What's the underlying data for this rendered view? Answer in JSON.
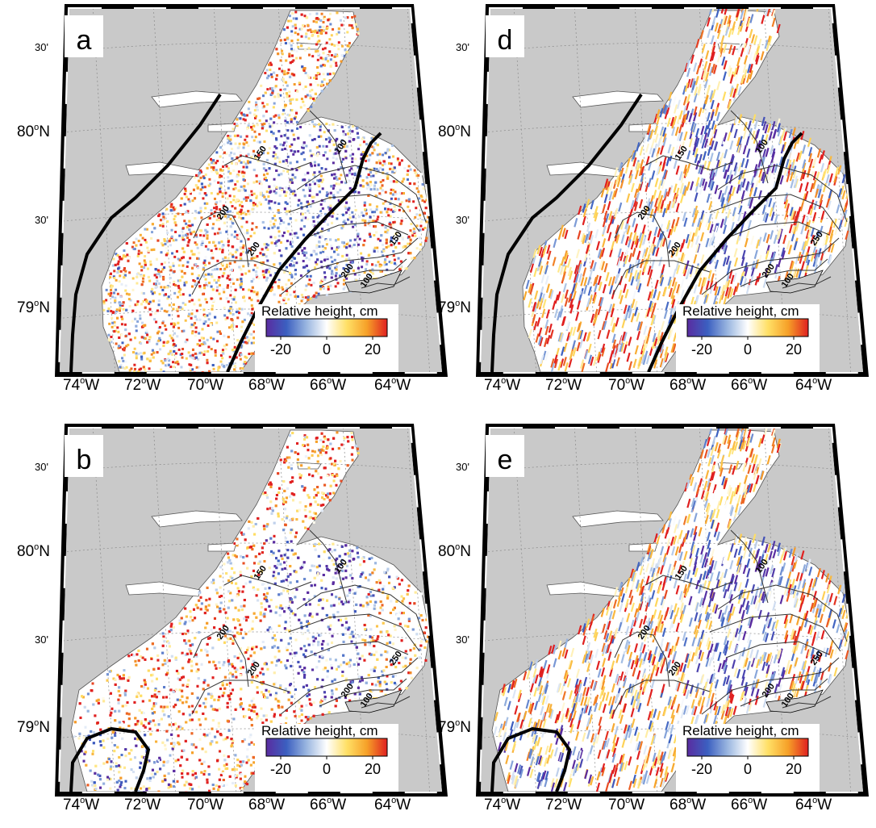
{
  "figure": {
    "colorbar": {
      "title": "Relative height, cm",
      "tick_labels": [
        "-20",
        "0",
        "20"
      ],
      "colors": [
        "#5a2ca0",
        "#3b5fc0",
        "#9ab6e0",
        "#ffffff",
        "#ffe066",
        "#f6a028",
        "#e02020"
      ]
    },
    "map_colors": {
      "land": "#c9c9c9",
      "water": "#ffffff",
      "frame_dark": "#000000",
      "frame_light": "#ffffff",
      "graticule": "#8a8a8a",
      "contour": "#333333"
    },
    "axes": {
      "lon_labels": [
        {
          "deg": "74",
          "hemi": "W"
        },
        {
          "deg": "72",
          "hemi": "W"
        },
        {
          "deg": "70",
          "hemi": "W"
        },
        {
          "deg": "68",
          "hemi": "W"
        },
        {
          "deg": "66",
          "hemi": "W"
        },
        {
          "deg": "64",
          "hemi": "W"
        }
      ],
      "lat_labels": [
        {
          "text": "30'",
          "kind": "minute"
        },
        {
          "deg": "80",
          "hemi": "N",
          "kind": "degree"
        },
        {
          "text": "30'",
          "kind": "minute"
        },
        {
          "deg": "79",
          "hemi": "N",
          "kind": "degree"
        }
      ],
      "degree_symbol": "o"
    },
    "panels": [
      {
        "letter": "a",
        "variant": "fine",
        "contours": [
          {
            "label": "150"
          },
          {
            "label": "100"
          },
          {
            "label": "200"
          },
          {
            "label": "200"
          },
          {
            "label": "150"
          },
          {
            "label": "200"
          },
          {
            "label": "100"
          }
        ]
      },
      {
        "letter": "d",
        "variant": "streak",
        "contours": [
          {
            "label": "150"
          },
          {
            "label": "100"
          },
          {
            "label": "200"
          },
          {
            "label": "200"
          },
          {
            "label": "250"
          },
          {
            "label": "200"
          },
          {
            "label": "100"
          }
        ]
      },
      {
        "letter": "b",
        "variant": "fine",
        "contours": [
          {
            "label": "150"
          },
          {
            "label": "100"
          },
          {
            "label": "200"
          },
          {
            "label": "200"
          },
          {
            "label": "250"
          },
          {
            "label": "200"
          },
          {
            "label": "100"
          }
        ]
      },
      {
        "letter": "e",
        "variant": "streak",
        "contours": [
          {
            "label": "150"
          },
          {
            "label": "100"
          },
          {
            "label": "200"
          },
          {
            "label": "200"
          },
          {
            "label": "250"
          },
          {
            "label": "200"
          },
          {
            "label": "100"
          }
        ]
      }
    ]
  }
}
